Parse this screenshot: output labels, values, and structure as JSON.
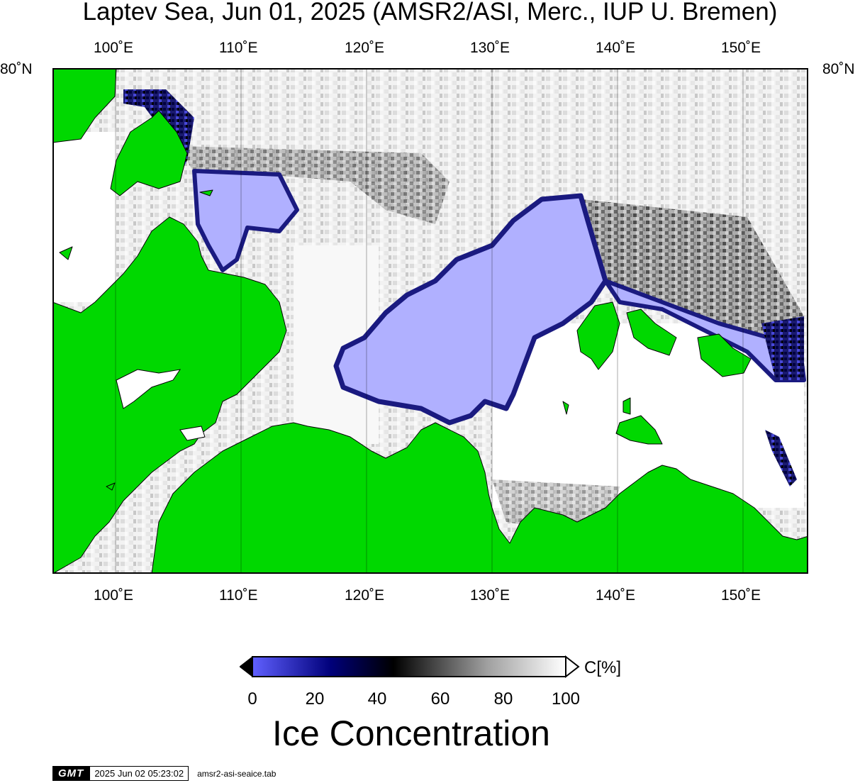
{
  "title": "Laptev Sea, Jun 01, 2025 (AMSR2/ASI, Merc., IUP U. Bremen)",
  "map": {
    "longitude_ticks": [
      "100˚E",
      "110˚E",
      "120˚E",
      "130˚E",
      "140˚E",
      "150˚E"
    ],
    "latitude_label_left": "80˚N",
    "latitude_label_right": "80˚N",
    "colors": {
      "land": "#00d800",
      "open_water": "#ffffff",
      "low_concentration": "#b0b0ff",
      "mid_concentration": "#000060",
      "coastline": "#000000"
    }
  },
  "colorbar": {
    "ticks": [
      "0",
      "20",
      "40",
      "60",
      "80",
      "100"
    ],
    "unit": "C[%]",
    "label": "Ice Concentration",
    "colors": [
      "#5a5aff",
      "#00007a",
      "#000000",
      "#808080",
      "#ffffff"
    ]
  },
  "footer": {
    "logo": "GMT",
    "timestamp": "2025 Jun 02 05:23:02",
    "filename": "amsr2-asi-seaice.tab"
  }
}
